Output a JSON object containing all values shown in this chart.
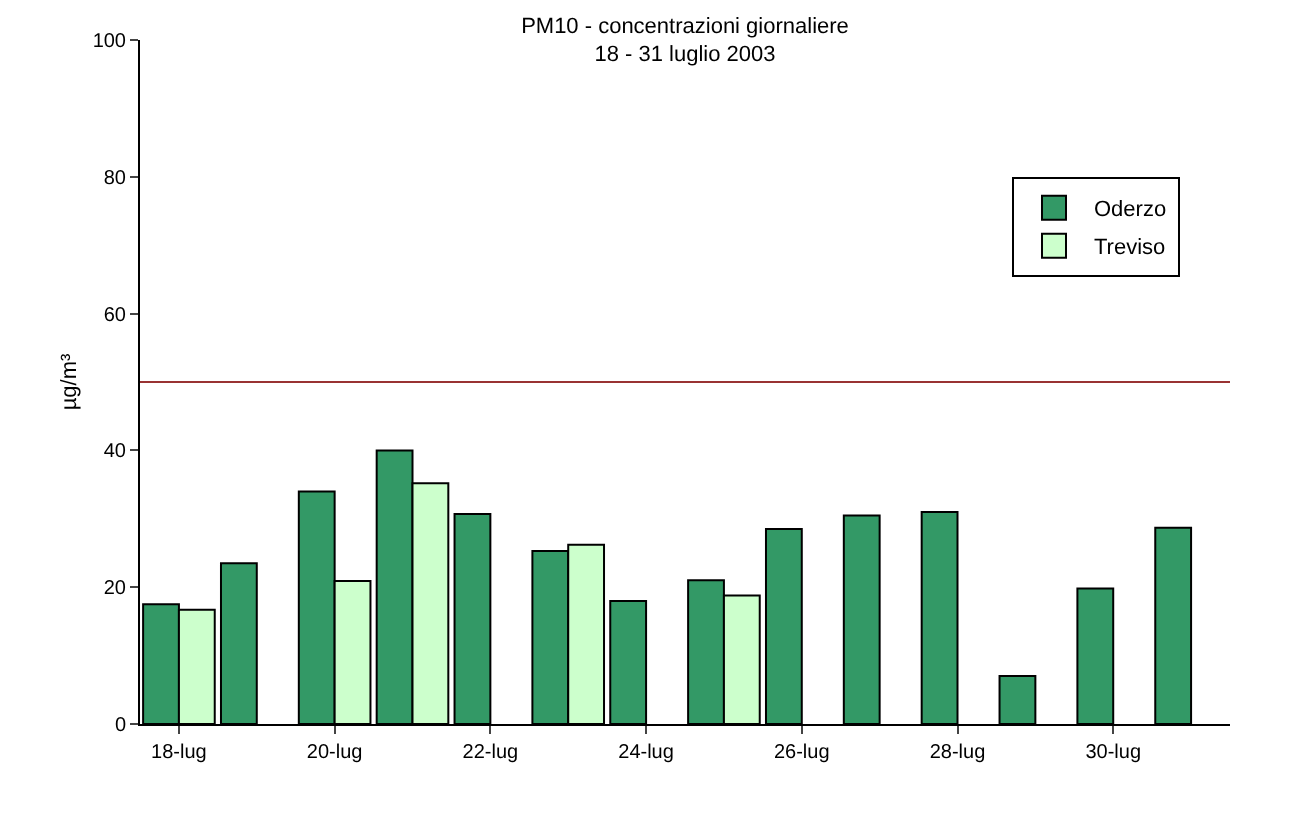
{
  "chart_data": {
    "type": "bar",
    "title": "PM10 - concentrazioni giornaliere",
    "subtitle": "18 - 31 luglio 2003",
    "ylabel": "µg/m³",
    "categories": [
      "18-lug",
      null,
      "20-lug",
      null,
      "22-lug",
      null,
      "24-lug",
      null,
      "26-lug",
      null,
      "28-lug",
      null,
      "30-lug",
      null
    ],
    "series": [
      {
        "name": "Oderzo",
        "color": "#339966",
        "values": [
          17.5,
          23.5,
          34,
          40,
          30.7,
          25.3,
          18,
          21,
          28.5,
          30.5,
          31,
          7,
          19.8,
          28.7
        ]
      },
      {
        "name": "Treviso",
        "color": "#ccffcc",
        "values": [
          16.7,
          null,
          20.9,
          35.2,
          null,
          26.2,
          null,
          18.8,
          null,
          null,
          null,
          null,
          null,
          null
        ]
      }
    ],
    "ylim": [
      0,
      100
    ],
    "yticks": [
      0,
      20,
      40,
      60,
      80,
      100
    ],
    "grid": false,
    "legend": "top right",
    "ref_lines": [
      {
        "axis": "y",
        "value": 50,
        "color": "#993333"
      }
    ]
  }
}
